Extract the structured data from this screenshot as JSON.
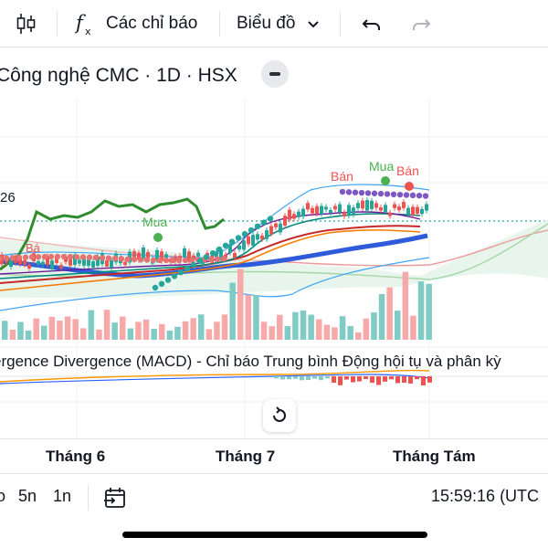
{
  "toolbar": {
    "indicators_label": "Các chỉ báo",
    "chart_type_label": "Biểu đồ"
  },
  "symbol": {
    "title": "Công nghệ CMC · 1D · HSX"
  },
  "chart": {
    "price_label_partial": "26",
    "signals": {
      "buy_1": "Mua",
      "buy_2": "Mua",
      "sell_1": "Bán",
      "sell_2": "Bán",
      "sell_left_partial": "Bá"
    },
    "macd_label": "ergence Divergence (MACD) - Chỉ báo Trung bình Động hội tụ và phân kỳ",
    "colors": {
      "up": "#26a69a",
      "down": "#ef5350",
      "volume_up": "#80cbc4",
      "volume_down": "#f7a9a9",
      "ma_blue": "#2e5bd9",
      "line_green": "#2e8b2e"
    }
  },
  "xaxis": {
    "month_1": "Tháng 6",
    "month_2": "Tháng 7",
    "month_3": "Tháng Tám"
  },
  "bottombar": {
    "range_partial": "o",
    "range_5y": "5n",
    "range_1y": "1n",
    "time": "15:59:16 (UTC"
  }
}
